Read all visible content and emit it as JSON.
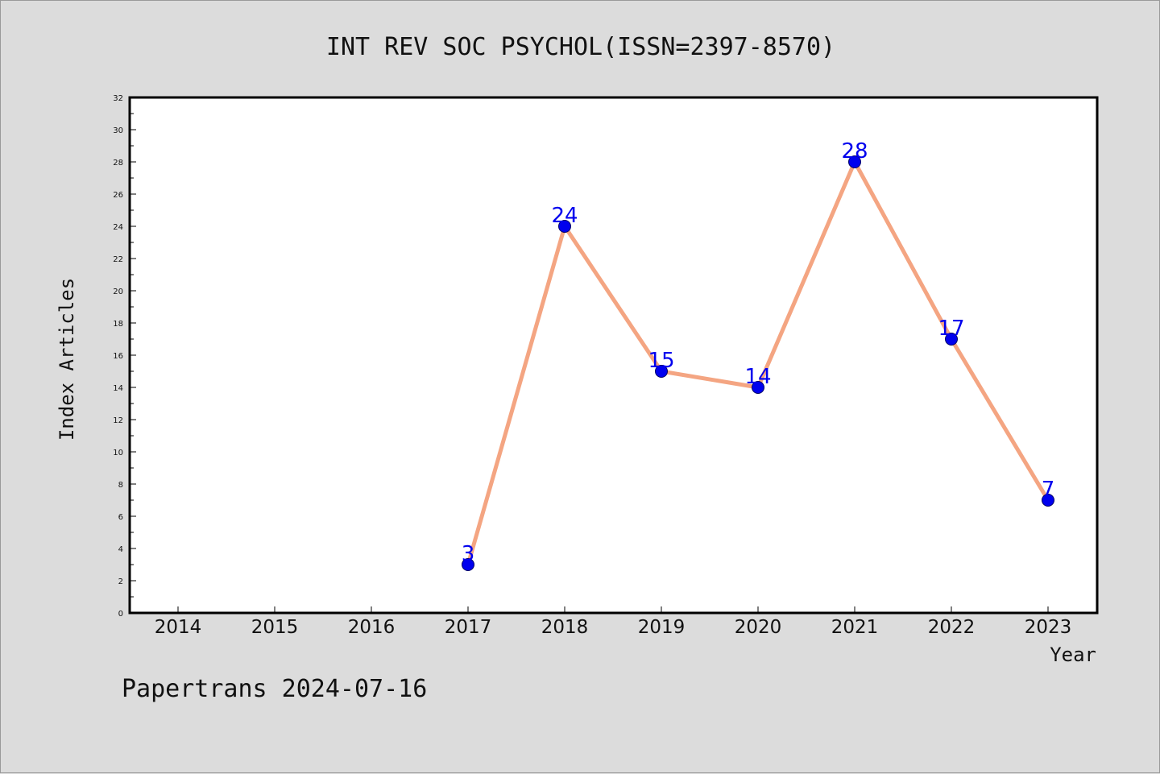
{
  "chart_data": {
    "type": "line",
    "title": "INT REV SOC PSYCHOL(ISSN=2397-8570)",
    "xlabel": "Year",
    "ylabel": "Index Articles",
    "categories": [
      "2014",
      "2015",
      "2016",
      "2017",
      "2018",
      "2019",
      "2020",
      "2021",
      "2022",
      "2023"
    ],
    "series": [
      {
        "x": [
          "2017",
          "2018",
          "2019",
          "2020",
          "2021",
          "2022",
          "2023"
        ],
        "values": [
          3,
          24,
          15,
          14,
          28,
          17,
          7
        ],
        "labels": [
          "3",
          "24",
          "15",
          "14",
          "28",
          "17",
          "7"
        ]
      }
    ],
    "ylim": [
      0,
      32
    ],
    "y_ticks": [
      "0",
      "2",
      "4",
      "6",
      "8",
      "10",
      "12",
      "14",
      "16",
      "18",
      "20",
      "22",
      "24",
      "26",
      "28",
      "30",
      "32"
    ],
    "grid": false,
    "colors": {
      "line": "#f4a582",
      "marker_fill": "#0000ee",
      "marker_stroke": "#000066",
      "data_label": "#0000ee",
      "background": "#dcdcdc",
      "plot_background": "#ffffff"
    }
  },
  "footer": "Papertrans 2024-07-16"
}
